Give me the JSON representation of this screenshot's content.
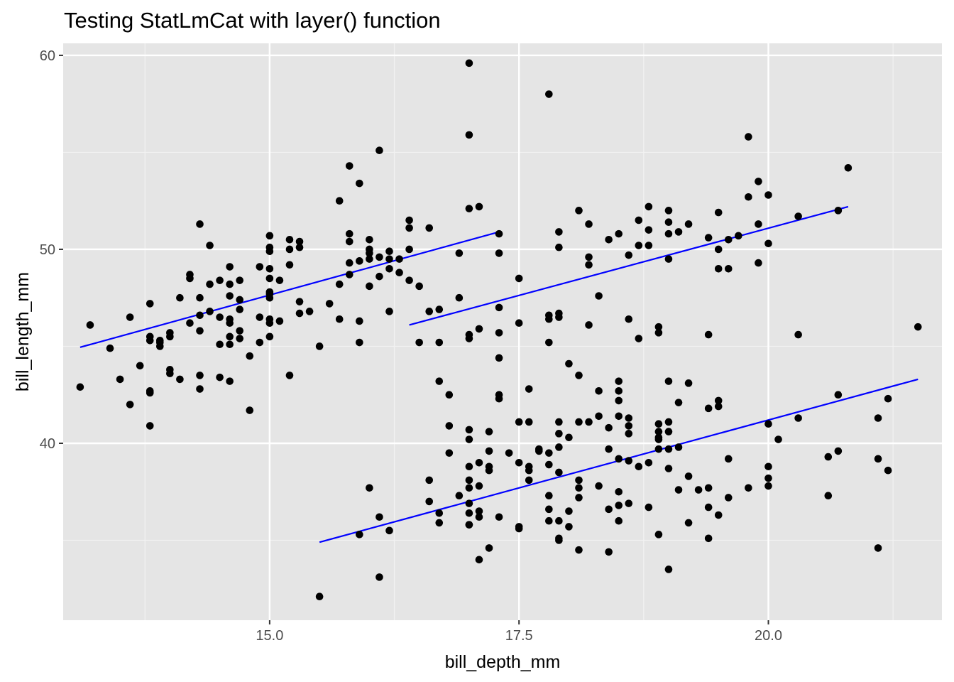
{
  "chart_data": {
    "type": "scatter",
    "title": "Testing StatLmCat with layer() function",
    "xlabel": "bill_depth_mm",
    "ylabel": "bill_length_mm",
    "xlim": [
      12.93,
      21.74
    ],
    "ylim": [
      30.88,
      60.62
    ],
    "x_ticks": [
      15.0,
      17.5,
      20.0
    ],
    "x_tick_labels": [
      "15.0",
      "17.5",
      "20.0"
    ],
    "y_ticks": [
      40,
      50,
      60
    ],
    "y_tick_labels": [
      "40",
      "50",
      "60"
    ],
    "x_minor_ticks": [
      13.75,
      16.25,
      18.75,
      21.25
    ],
    "y_minor_ticks": [
      35,
      45,
      55
    ],
    "grid": true,
    "background": "#e5e5e5",
    "point_color": "#000000",
    "line_color": "#0000ff",
    "points": [
      [
        13.1,
        42.9
      ],
      [
        13.2,
        46.1
      ],
      [
        13.4,
        44.9
      ],
      [
        13.5,
        43.3
      ],
      [
        13.6,
        46.5
      ],
      [
        13.6,
        42.0
      ],
      [
        13.7,
        44.0
      ],
      [
        13.8,
        47.2
      ],
      [
        13.8,
        45.3
      ],
      [
        13.8,
        45.5
      ],
      [
        13.8,
        42.6
      ],
      [
        13.8,
        42.7
      ],
      [
        13.8,
        40.9
      ],
      [
        13.9,
        45.0
      ],
      [
        13.9,
        45.2
      ],
      [
        13.9,
        45.3
      ],
      [
        14.0,
        45.5
      ],
      [
        14.0,
        45.7
      ],
      [
        14.0,
        43.6
      ],
      [
        14.0,
        43.8
      ],
      [
        14.1,
        47.5
      ],
      [
        14.1,
        43.3
      ],
      [
        14.2,
        48.5
      ],
      [
        14.2,
        48.7
      ],
      [
        14.2,
        46.2
      ],
      [
        14.3,
        51.3
      ],
      [
        14.3,
        47.5
      ],
      [
        14.3,
        45.8
      ],
      [
        14.3,
        46.6
      ],
      [
        14.3,
        43.5
      ],
      [
        14.3,
        42.8
      ],
      [
        14.4,
        50.2
      ],
      [
        14.4,
        48.2
      ],
      [
        14.4,
        46.8
      ],
      [
        14.5,
        48.4
      ],
      [
        14.5,
        46.5
      ],
      [
        14.5,
        45.1
      ],
      [
        14.5,
        43.4
      ],
      [
        14.6,
        49.1
      ],
      [
        14.6,
        47.6
      ],
      [
        14.6,
        48.2
      ],
      [
        14.6,
        46.2
      ],
      [
        14.6,
        46.4
      ],
      [
        14.6,
        45.5
      ],
      [
        14.6,
        45.1
      ],
      [
        14.6,
        43.2
      ],
      [
        14.7,
        48.4
      ],
      [
        14.7,
        47.4
      ],
      [
        14.7,
        46.9
      ],
      [
        14.7,
        45.8
      ],
      [
        14.7,
        45.4
      ],
      [
        14.8,
        44.5
      ],
      [
        14.8,
        41.7
      ],
      [
        14.9,
        49.1
      ],
      [
        14.9,
        46.5
      ],
      [
        14.9,
        45.2
      ],
      [
        15.0,
        50.7
      ],
      [
        15.0,
        50.1
      ],
      [
        15.0,
        49.0
      ],
      [
        15.0,
        49.9
      ],
      [
        15.0,
        48.5
      ],
      [
        15.0,
        47.7
      ],
      [
        15.0,
        47.5
      ],
      [
        15.0,
        46.4
      ],
      [
        15.0,
        45.5
      ],
      [
        15.0,
        47.8
      ],
      [
        15.1,
        48.4
      ],
      [
        15.1,
        46.3
      ],
      [
        15.0,
        46.2
      ],
      [
        15.2,
        50.5
      ],
      [
        15.2,
        50.0
      ],
      [
        15.2,
        49.2
      ],
      [
        15.2,
        43.5
      ],
      [
        15.3,
        50.4
      ],
      [
        15.3,
        50.1
      ],
      [
        15.3,
        47.3
      ],
      [
        15.3,
        46.7
      ],
      [
        15.4,
        46.8
      ],
      [
        15.5,
        45.0
      ],
      [
        15.6,
        47.2
      ],
      [
        15.7,
        52.5
      ],
      [
        15.7,
        48.2
      ],
      [
        15.7,
        46.4
      ],
      [
        15.8,
        54.3
      ],
      [
        15.8,
        50.8
      ],
      [
        15.8,
        50.4
      ],
      [
        15.8,
        49.3
      ],
      [
        15.8,
        48.7
      ],
      [
        15.9,
        53.4
      ],
      [
        15.9,
        49.4
      ],
      [
        15.9,
        46.3
      ],
      [
        15.9,
        45.2
      ],
      [
        16.0,
        50.5
      ],
      [
        16.0,
        50.0
      ],
      [
        16.0,
        49.8
      ],
      [
        16.0,
        49.5
      ],
      [
        16.0,
        48.1
      ],
      [
        16.1,
        55.1
      ],
      [
        16.1,
        49.6
      ],
      [
        16.1,
        48.6
      ],
      [
        16.2,
        49.9
      ],
      [
        16.2,
        49.5
      ],
      [
        16.2,
        49.0
      ],
      [
        16.2,
        46.8
      ],
      [
        16.3,
        49.5
      ],
      [
        16.3,
        48.8
      ],
      [
        16.4,
        51.5
      ],
      [
        16.4,
        51.1
      ],
      [
        16.4,
        50.0
      ],
      [
        16.4,
        48.4
      ],
      [
        16.5,
        48.1
      ],
      [
        16.5,
        45.2
      ],
      [
        16.6,
        51.1
      ],
      [
        16.6,
        46.8
      ],
      [
        16.7,
        46.9
      ],
      [
        16.7,
        45.2
      ],
      [
        16.7,
        43.2
      ],
      [
        16.8,
        42.5
      ],
      [
        16.8,
        40.9
      ],
      [
        16.9,
        49.8
      ],
      [
        16.9,
        47.5
      ],
      [
        17.0,
        59.6
      ],
      [
        17.0,
        55.9
      ],
      [
        17.0,
        52.1
      ],
      [
        17.0,
        45.6
      ],
      [
        17.0,
        45.4
      ],
      [
        17.1,
        52.2
      ],
      [
        17.1,
        45.9
      ],
      [
        17.3,
        50.8
      ],
      [
        17.3,
        49.8
      ],
      [
        17.3,
        47.0
      ],
      [
        17.3,
        45.7
      ],
      [
        17.3,
        44.4
      ],
      [
        17.3,
        42.5
      ],
      [
        17.3,
        42.3
      ],
      [
        17.5,
        48.5
      ],
      [
        17.5,
        46.2
      ],
      [
        17.6,
        42.8
      ],
      [
        17.8,
        58.0
      ],
      [
        17.8,
        46.6
      ],
      [
        17.8,
        46.4
      ],
      [
        17.8,
        45.2
      ],
      [
        17.9,
        50.9
      ],
      [
        17.9,
        50.1
      ],
      [
        17.9,
        46.7
      ],
      [
        17.9,
        46.5
      ],
      [
        18.0,
        44.1
      ],
      [
        18.1,
        52.0
      ],
      [
        18.1,
        43.5
      ],
      [
        18.2,
        51.3
      ],
      [
        18.2,
        49.6
      ],
      [
        18.2,
        49.2
      ],
      [
        18.2,
        46.1
      ],
      [
        18.3,
        47.6
      ],
      [
        18.4,
        50.5
      ],
      [
        18.5,
        50.8
      ],
      [
        18.6,
        49.7
      ],
      [
        18.6,
        46.4
      ],
      [
        18.7,
        51.5
      ],
      [
        18.7,
        50.2
      ],
      [
        18.7,
        45.4
      ],
      [
        18.8,
        52.2
      ],
      [
        18.8,
        51.0
      ],
      [
        18.8,
        50.2
      ],
      [
        18.9,
        46.0
      ],
      [
        18.9,
        45.7
      ],
      [
        19.0,
        52.0
      ],
      [
        19.0,
        51.4
      ],
      [
        19.0,
        50.8
      ],
      [
        19.0,
        49.5
      ],
      [
        19.1,
        50.9
      ],
      [
        19.2,
        51.3
      ],
      [
        19.4,
        50.6
      ],
      [
        19.4,
        45.6
      ],
      [
        19.5,
        51.9
      ],
      [
        19.5,
        50.0
      ],
      [
        19.5,
        49.0
      ],
      [
        19.6,
        50.5
      ],
      [
        19.6,
        49.0
      ],
      [
        19.7,
        50.7
      ],
      [
        19.8,
        55.8
      ],
      [
        19.8,
        52.7
      ],
      [
        19.9,
        53.5
      ],
      [
        19.9,
        51.3
      ],
      [
        19.9,
        49.3
      ],
      [
        20.0,
        52.8
      ],
      [
        20.0,
        50.3
      ],
      [
        20.3,
        51.7
      ],
      [
        20.3,
        45.6
      ],
      [
        20.7,
        52.0
      ],
      [
        20.8,
        54.2
      ],
      [
        21.5,
        46.0
      ],
      [
        15.5,
        32.1
      ],
      [
        15.9,
        35.3
      ],
      [
        16.0,
        37.7
      ],
      [
        16.1,
        33.1
      ],
      [
        16.1,
        36.2
      ],
      [
        16.2,
        35.5
      ],
      [
        16.6,
        38.1
      ],
      [
        16.6,
        37.0
      ],
      [
        16.7,
        36.4
      ],
      [
        16.7,
        35.9
      ],
      [
        16.8,
        39.5
      ],
      [
        16.9,
        37.3
      ],
      [
        17.0,
        36.9
      ],
      [
        17.0,
        35.8
      ],
      [
        17.0,
        40.7
      ],
      [
        17.0,
        40.2
      ],
      [
        17.0,
        38.8
      ],
      [
        17.0,
        38.1
      ],
      [
        17.0,
        37.7
      ],
      [
        17.0,
        36.4
      ],
      [
        17.0,
        35.8
      ],
      [
        17.1,
        39.0
      ],
      [
        17.1,
        37.8
      ],
      [
        17.1,
        36.5
      ],
      [
        17.1,
        36.2
      ],
      [
        17.1,
        34.0
      ],
      [
        17.2,
        40.6
      ],
      [
        17.2,
        39.6
      ],
      [
        17.2,
        38.8
      ],
      [
        17.2,
        38.6
      ],
      [
        17.2,
        34.6
      ],
      [
        17.3,
        36.2
      ],
      [
        17.4,
        39.5
      ],
      [
        17.5,
        41.1
      ],
      [
        17.5,
        39.0
      ],
      [
        17.5,
        35.7
      ],
      [
        17.5,
        35.6
      ],
      [
        17.6,
        41.1
      ],
      [
        17.6,
        38.8
      ],
      [
        17.6,
        38.1
      ],
      [
        17.6,
        38.6
      ],
      [
        17.7,
        39.7
      ],
      [
        17.7,
        39.6
      ],
      [
        17.8,
        39.5
      ],
      [
        17.8,
        38.9
      ],
      [
        17.8,
        37.3
      ],
      [
        17.8,
        36.6
      ],
      [
        17.8,
        36.0
      ],
      [
        17.9,
        41.1
      ],
      [
        17.9,
        40.5
      ],
      [
        17.9,
        39.8
      ],
      [
        17.9,
        38.5
      ],
      [
        17.9,
        36.0
      ],
      [
        17.9,
        35.1
      ],
      [
        17.9,
        35.0
      ],
      [
        18.0,
        40.3
      ],
      [
        18.0,
        36.5
      ],
      [
        18.0,
        35.7
      ],
      [
        18.1,
        41.1
      ],
      [
        18.1,
        38.1
      ],
      [
        18.1,
        37.7
      ],
      [
        18.1,
        37.2
      ],
      [
        18.1,
        34.5
      ],
      [
        18.2,
        41.1
      ],
      [
        18.3,
        42.7
      ],
      [
        18.3,
        41.4
      ],
      [
        18.3,
        37.8
      ],
      [
        18.4,
        40.8
      ],
      [
        18.4,
        39.7
      ],
      [
        18.4,
        36.6
      ],
      [
        18.4,
        34.4
      ],
      [
        18.5,
        43.2
      ],
      [
        18.5,
        42.7
      ],
      [
        18.5,
        42.2
      ],
      [
        18.5,
        41.4
      ],
      [
        18.5,
        39.2
      ],
      [
        18.5,
        37.5
      ],
      [
        18.5,
        36.8
      ],
      [
        18.5,
        36.0
      ],
      [
        18.6,
        41.3
      ],
      [
        18.6,
        40.9
      ],
      [
        18.6,
        40.5
      ],
      [
        18.6,
        39.1
      ],
      [
        18.6,
        36.9
      ],
      [
        18.7,
        38.8
      ],
      [
        18.8,
        39.0
      ],
      [
        18.8,
        36.7
      ],
      [
        18.9,
        41.0
      ],
      [
        18.9,
        40.6
      ],
      [
        18.9,
        40.3
      ],
      [
        18.9,
        40.2
      ],
      [
        18.9,
        39.7
      ],
      [
        18.9,
        35.3
      ],
      [
        19.0,
        43.2
      ],
      [
        19.0,
        41.1
      ],
      [
        19.0,
        40.6
      ],
      [
        19.0,
        39.7
      ],
      [
        19.0,
        38.7
      ],
      [
        19.0,
        33.5
      ],
      [
        19.1,
        42.1
      ],
      [
        19.1,
        39.8
      ],
      [
        19.1,
        37.6
      ],
      [
        19.2,
        43.1
      ],
      [
        19.2,
        38.3
      ],
      [
        19.2,
        35.9
      ],
      [
        19.3,
        37.6
      ],
      [
        19.4,
        37.7
      ],
      [
        19.4,
        36.7
      ],
      [
        19.4,
        41.8
      ],
      [
        19.4,
        35.1
      ],
      [
        19.5,
        42.2
      ],
      [
        19.5,
        41.9
      ],
      [
        19.5,
        36.3
      ],
      [
        19.6,
        39.2
      ],
      [
        19.6,
        37.2
      ],
      [
        19.8,
        37.7
      ],
      [
        20.0,
        41.0
      ],
      [
        20.0,
        38.8
      ],
      [
        20.0,
        38.2
      ],
      [
        20.0,
        37.8
      ],
      [
        20.1,
        40.2
      ],
      [
        20.3,
        41.3
      ],
      [
        20.6,
        37.3
      ],
      [
        20.6,
        39.3
      ],
      [
        20.7,
        39.6
      ],
      [
        20.7,
        42.5
      ],
      [
        21.1,
        41.3
      ],
      [
        21.1,
        39.2
      ],
      [
        21.1,
        34.6
      ],
      [
        21.2,
        42.3
      ],
      [
        21.2,
        38.6
      ]
    ],
    "trend_lines": [
      {
        "x": [
          13.1,
          17.3
        ],
        "y": [
          44.95,
          50.9
        ]
      },
      {
        "x": [
          16.4,
          20.8
        ],
        "y": [
          46.1,
          52.2
        ]
      },
      {
        "x": [
          15.5,
          21.5
        ],
        "y": [
          34.9,
          43.3
        ]
      }
    ]
  }
}
